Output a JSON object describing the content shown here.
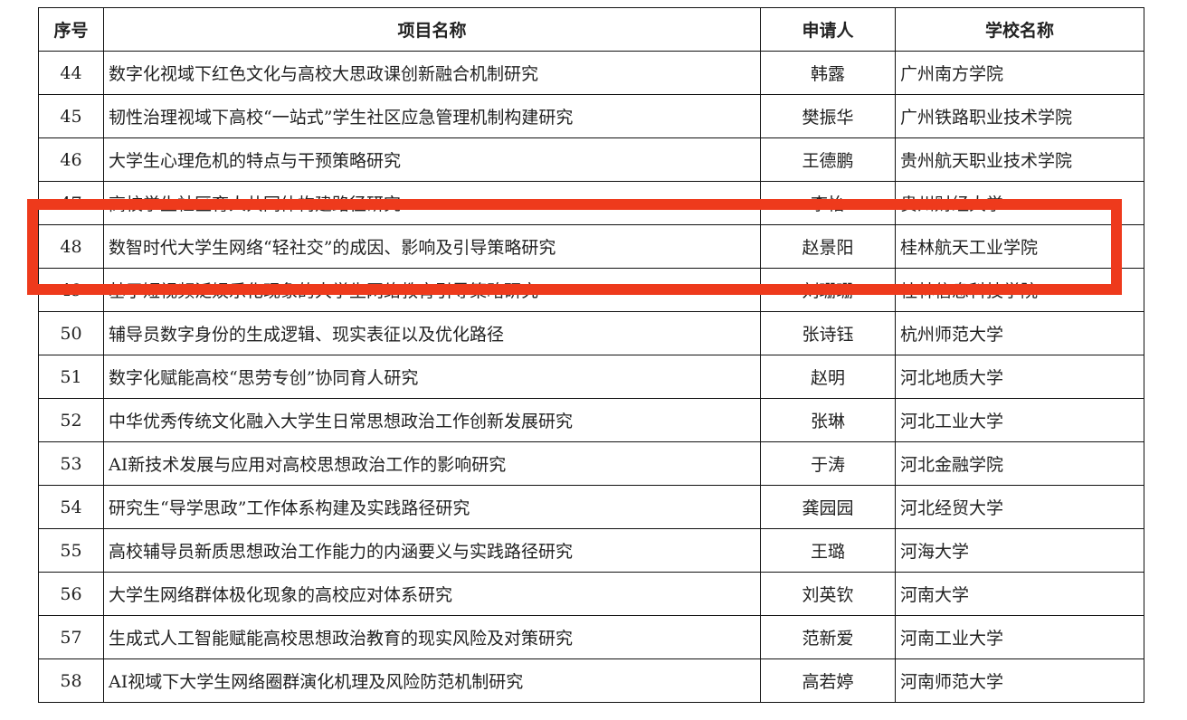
{
  "headers": {
    "no": "序号",
    "project": "项目名称",
    "applicant": "申请人",
    "school": "学校名称"
  },
  "rows": [
    {
      "no": "44",
      "project": "数字化视域下红色文化与高校大思政课创新融合机制研究",
      "applicant": "韩露",
      "school": "广州南方学院"
    },
    {
      "no": "45",
      "project": "韧性治理视域下高校“一站式”学生社区应急管理机制构建研究",
      "applicant": "樊振华",
      "school": "广州铁路职业技术学院"
    },
    {
      "no": "46",
      "project": "大学生心理危机的特点与干预策略研究",
      "applicant": "王德鹏",
      "school": "贵州航天职业技术学院"
    },
    {
      "no": "47",
      "project": "高校学生社区育人共同体构建路径研究",
      "applicant": "李怡",
      "school": "贵州财经大学"
    },
    {
      "no": "48",
      "project": "数智时代大学生网络“轻社交”的成因、影响及引导策略研究",
      "applicant": "赵景阳",
      "school": "桂林航天工业学院"
    },
    {
      "no": "49",
      "project": "基于短视频泛娱乐化现象的大学生网络教育引导策略研究",
      "applicant": "刘珊珊",
      "school": "桂林信息科技学院"
    },
    {
      "no": "50",
      "project": "辅导员数字身份的生成逻辑、现实表征以及优化路径",
      "applicant": "张诗钰",
      "school": "杭州师范大学"
    },
    {
      "no": "51",
      "project": "数字化赋能高校“思劳专创”协同育人研究",
      "applicant": "赵明",
      "school": "河北地质大学"
    },
    {
      "no": "52",
      "project": "中华优秀传统文化融入大学生日常思想政治工作创新发展研究",
      "applicant": "张琳",
      "school": "河北工业大学"
    },
    {
      "no": "53",
      "project": "AI新技术发展与应用对高校思想政治工作的影响研究",
      "applicant": "于涛",
      "school": "河北金融学院"
    },
    {
      "no": "54",
      "project": "研究生“导学思政”工作体系构建及实践路径研究",
      "applicant": "龚园园",
      "school": "河北经贸大学"
    },
    {
      "no": "55",
      "project": "高校辅导员新质思想政治工作能力的内涵要义与实践路径研究",
      "applicant": "王璐",
      "school": "河海大学"
    },
    {
      "no": "56",
      "project": "大学生网络群体极化现象的高校应对体系研究",
      "applicant": "刘英钦",
      "school": "河南大学"
    },
    {
      "no": "57",
      "project": "生成式人工智能赋能高校思想政治教育的现实风险及对策研究",
      "applicant": "范新爱",
      "school": "河南工业大学"
    },
    {
      "no": "58",
      "project": "AI视域下大学生网络圈群演化机理及风险防范机制研究",
      "applicant": "高若婷",
      "school": "河南师范大学"
    }
  ],
  "highlight_color": "#ee3a1c"
}
